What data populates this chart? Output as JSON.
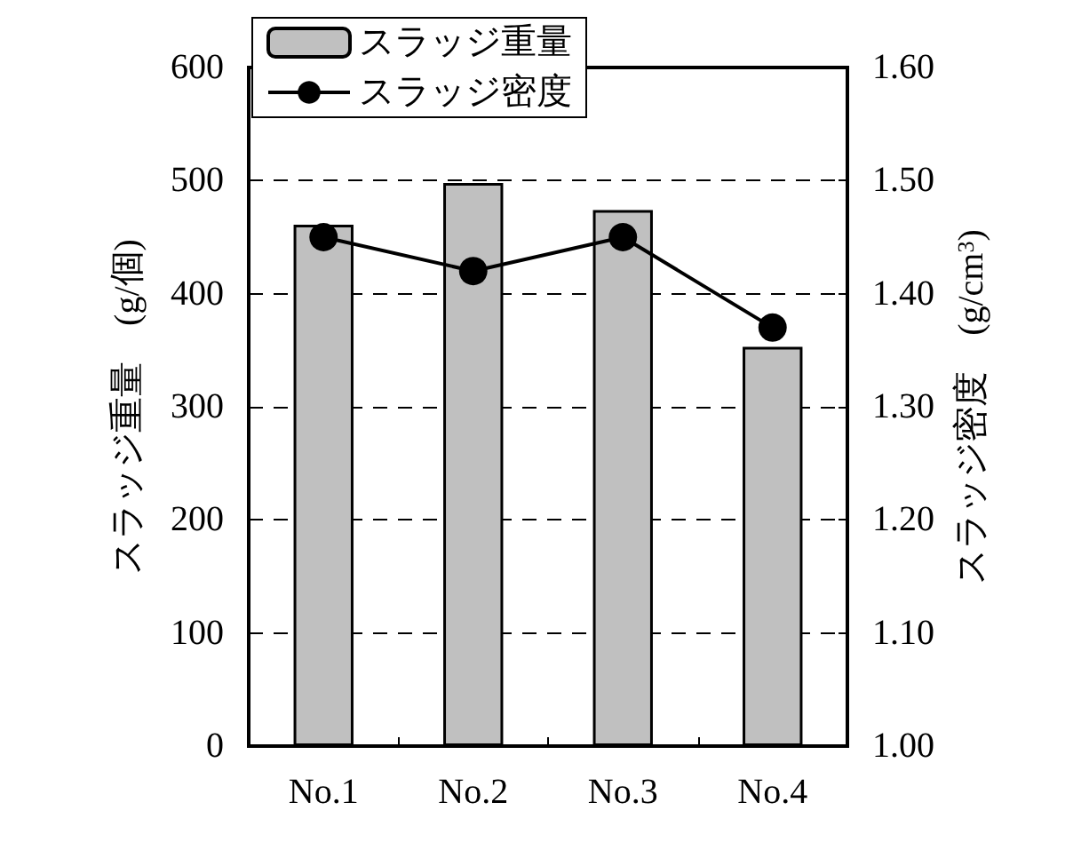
{
  "chart_data": {
    "type": "bar",
    "categories": [
      "No.1",
      "No.2",
      "No.3",
      "No.4"
    ],
    "ylabel": "スラッジ重量　(g/個)",
    "y2label": "スラッジ密度　(g/cm$^{3}$)",
    "series": [
      {
        "name": "スラッジ重量",
        "color": "#c0c0c0",
        "values": [
          461,
          498,
          474,
          353
        ]
      },
      {
        "name": "スラッジ密度",
        "type": "line",
        "axis": "y2",
        "color": "#000000",
        "values": [
          1.45,
          1.42,
          1.45,
          1.37
        ]
      }
    ],
    "ylim": [
      0,
      600
    ],
    "yticks": [
      0,
      100,
      200,
      300,
      400,
      500,
      600
    ],
    "y2lim": [
      1.0,
      1.6
    ],
    "y2ticks": [
      {
        "value": 1.0,
        "label": "1.00"
      },
      {
        "value": 1.1,
        "label": "1.10"
      },
      {
        "value": 1.2,
        "label": "1.20"
      },
      {
        "value": 1.3,
        "label": "1.30"
      },
      {
        "value": 1.4,
        "label": "1.40"
      },
      {
        "value": 1.5,
        "label": "1.50"
      },
      {
        "value": 1.6,
        "label": "1.60"
      }
    ],
    "grid": "y",
    "legend": "top left",
    "marker": "circle",
    "line_style": "solid"
  }
}
